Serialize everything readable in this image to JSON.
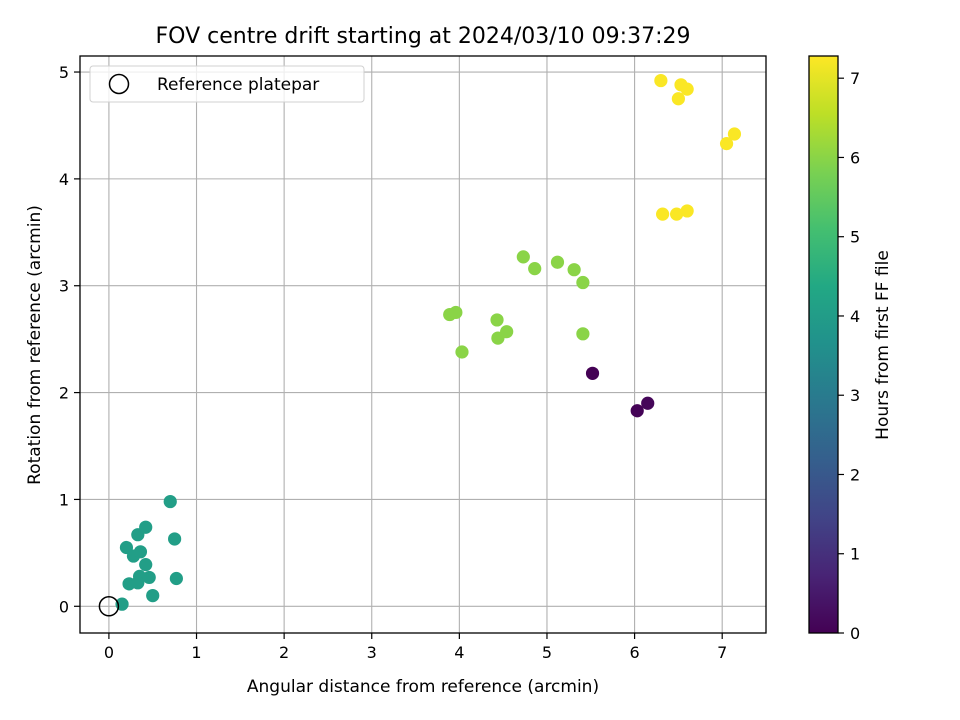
{
  "chart_data": {
    "type": "scatter",
    "title": "FOV centre drift starting at 2024/03/10 09:37:29",
    "xlabel": "Angular distance from reference (arcmin)",
    "ylabel": "Rotation from reference (arcmin)",
    "xlim": [
      -0.33,
      7.5
    ],
    "ylim": [
      -0.25,
      5.15
    ],
    "xticks": [
      0,
      1,
      2,
      3,
      4,
      5,
      6,
      7
    ],
    "xtick_labels": [
      "0",
      "1",
      "2",
      "3",
      "4",
      "5",
      "6",
      "7"
    ],
    "yticks": [
      0,
      1,
      2,
      3,
      4,
      5
    ],
    "ytick_labels": [
      "0",
      "1",
      "2",
      "3",
      "4",
      "5"
    ],
    "grid": true,
    "legend": {
      "placement": "upper-left",
      "entries": [
        "Reference platepar"
      ]
    },
    "colorbar": {
      "label": "Hours from first FF file",
      "range": [
        0,
        7.28
      ],
      "ticks": [
        0,
        1,
        2,
        3,
        4,
        5,
        6,
        7
      ],
      "tick_labels": [
        "0",
        "1",
        "2",
        "3",
        "4",
        "5",
        "6",
        "7"
      ],
      "colormap": "viridis"
    },
    "reference_point": {
      "x": 0,
      "y": 0,
      "label": "Reference platepar"
    },
    "series": [
      {
        "points": [
          {
            "x": 5.52,
            "y": 2.18,
            "hours": 0.0
          },
          {
            "x": 6.03,
            "y": 1.83,
            "hours": 0.05
          },
          {
            "x": 6.15,
            "y": 1.9,
            "hours": 0.1
          },
          {
            "x": 0.2,
            "y": 0.55,
            "hours": 4.05
          },
          {
            "x": 0.28,
            "y": 0.47,
            "hours": 4.05
          },
          {
            "x": 0.33,
            "y": 0.67,
            "hours": 4.05
          },
          {
            "x": 0.42,
            "y": 0.74,
            "hours": 4.05
          },
          {
            "x": 0.36,
            "y": 0.51,
            "hours": 4.05
          },
          {
            "x": 0.42,
            "y": 0.39,
            "hours": 4.05
          },
          {
            "x": 0.35,
            "y": 0.28,
            "hours": 4.05
          },
          {
            "x": 0.46,
            "y": 0.27,
            "hours": 4.05
          },
          {
            "x": 0.23,
            "y": 0.21,
            "hours": 4.05
          },
          {
            "x": 0.33,
            "y": 0.22,
            "hours": 4.05
          },
          {
            "x": 0.7,
            "y": 0.98,
            "hours": 4.05
          },
          {
            "x": 0.75,
            "y": 0.63,
            "hours": 4.05
          },
          {
            "x": 0.77,
            "y": 0.26,
            "hours": 4.05
          },
          {
            "x": 0.5,
            "y": 0.1,
            "hours": 4.05
          },
          {
            "x": 0.15,
            "y": 0.02,
            "hours": 4.05
          },
          {
            "x": 3.89,
            "y": 2.73,
            "hours": 6.0
          },
          {
            "x": 3.96,
            "y": 2.75,
            "hours": 6.0
          },
          {
            "x": 4.03,
            "y": 2.38,
            "hours": 6.0
          },
          {
            "x": 4.43,
            "y": 2.68,
            "hours": 6.0
          },
          {
            "x": 4.44,
            "y": 2.51,
            "hours": 6.0
          },
          {
            "x": 4.54,
            "y": 2.57,
            "hours": 6.0
          },
          {
            "x": 4.73,
            "y": 3.27,
            "hours": 6.0
          },
          {
            "x": 4.86,
            "y": 3.16,
            "hours": 6.0
          },
          {
            "x": 5.12,
            "y": 3.22,
            "hours": 6.0
          },
          {
            "x": 5.31,
            "y": 3.15,
            "hours": 6.0
          },
          {
            "x": 5.41,
            "y": 3.03,
            "hours": 6.0
          },
          {
            "x": 5.41,
            "y": 2.55,
            "hours": 6.0
          },
          {
            "x": 6.3,
            "y": 4.92,
            "hours": 7.25
          },
          {
            "x": 6.53,
            "y": 4.88,
            "hours": 7.25
          },
          {
            "x": 6.5,
            "y": 4.75,
            "hours": 7.25
          },
          {
            "x": 6.6,
            "y": 4.84,
            "hours": 7.25
          },
          {
            "x": 7.14,
            "y": 4.42,
            "hours": 7.25
          },
          {
            "x": 7.05,
            "y": 4.33,
            "hours": 7.25
          },
          {
            "x": 6.32,
            "y": 3.67,
            "hours": 7.25
          },
          {
            "x": 6.48,
            "y": 3.67,
            "hours": 7.25
          },
          {
            "x": 6.6,
            "y": 3.7,
            "hours": 7.25
          }
        ]
      }
    ]
  }
}
